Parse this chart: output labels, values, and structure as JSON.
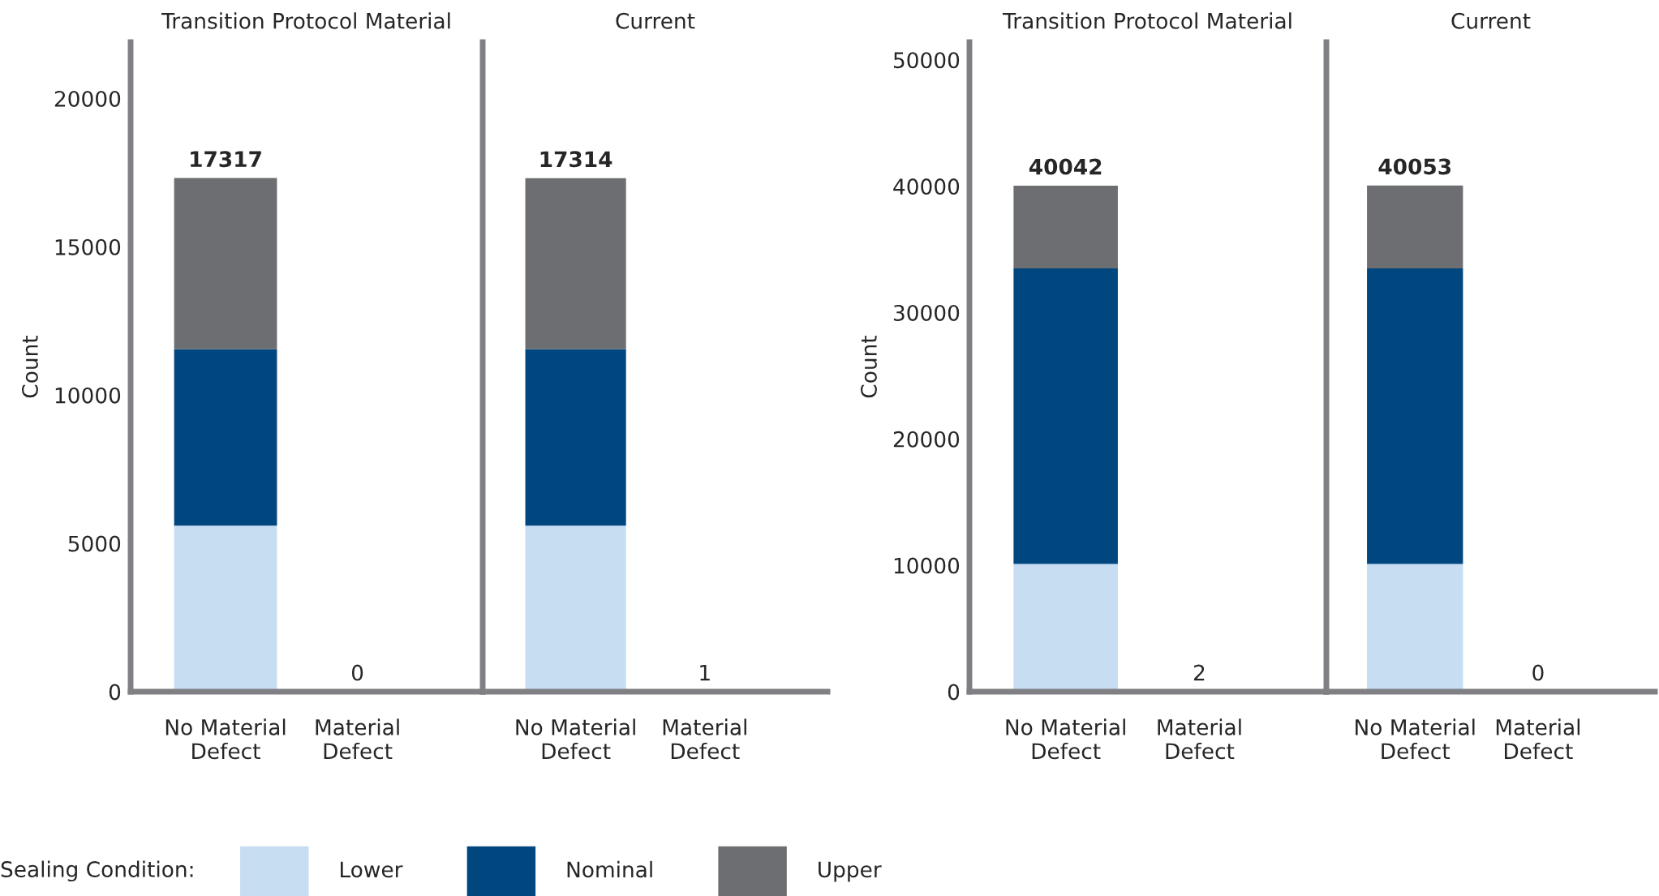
{
  "chart_data": [
    {
      "type": "bar",
      "title": "Transition Protocol Material",
      "ylabel": "Count",
      "categories": [
        "No Material\nDefect",
        "Material\nDefect"
      ],
      "stacked": true,
      "legend": "bottom",
      "legend_title": "Sealing Condition:",
      "series": [
        {
          "name": "Lower",
          "color": "#c6ddf2",
          "values": [
            5600,
            null
          ]
        },
        {
          "name": "Nominal",
          "color": "#00467f",
          "values": [
            5950,
            null
          ]
        },
        {
          "name": "Upper",
          "color": "#6d6e71",
          "values": [
            5767,
            null
          ]
        }
      ],
      "totals": [
        "17317",
        "0"
      ],
      "ylim": [
        0,
        21900
      ],
      "yticks": [
        0,
        5000,
        10000,
        15000,
        20000
      ],
      "grid": false
    },
    {
      "type": "bar",
      "title": "Current",
      "categories": [
        "No Material\nDefect",
        "Material\nDefect"
      ],
      "stacked": true,
      "tick_labels": "x",
      "series": [
        {
          "color": "#c6ddf2",
          "values": [
            5600,
            null
          ]
        },
        {
          "color": "#00467f",
          "values": [
            5950,
            null
          ]
        },
        {
          "color": "#6d6e71",
          "values": [
            5764,
            null
          ]
        }
      ],
      "totals": [
        "17314",
        "1"
      ],
      "ylim": [
        0,
        21900
      ],
      "grid": false
    },
    {
      "type": "bar",
      "title": "Transition Protocol Material",
      "ylabel": "Count",
      "categories": [
        "No Material\nDefect",
        "Material\nDefect"
      ],
      "stacked": true,
      "series": [
        {
          "color": "#c6ddf2",
          "values": [
            10100,
            null
          ]
        },
        {
          "color": "#00467f",
          "values": [
            23400,
            null
          ]
        },
        {
          "color": "#6d6e71",
          "values": [
            6542,
            null
          ]
        }
      ],
      "totals": [
        "40042",
        "2"
      ],
      "ylim": [
        0,
        51400
      ],
      "yticks": [
        0,
        10000,
        20000,
        30000,
        40000,
        50000
      ],
      "grid": false
    },
    {
      "type": "bar",
      "title": "Current",
      "categories": [
        "No Material\nDefect",
        "Material\nDefect"
      ],
      "stacked": true,
      "tick_labels": "x",
      "series": [
        {
          "color": "#c6ddf2",
          "values": [
            10100,
            null
          ]
        },
        {
          "color": "#00467f",
          "values": [
            23400,
            null
          ]
        },
        {
          "color": "#6d6e71",
          "values": [
            6553,
            null
          ]
        }
      ],
      "totals": [
        "40053",
        "0"
      ],
      "ylim": [
        0,
        51400
      ],
      "grid": false
    }
  ]
}
